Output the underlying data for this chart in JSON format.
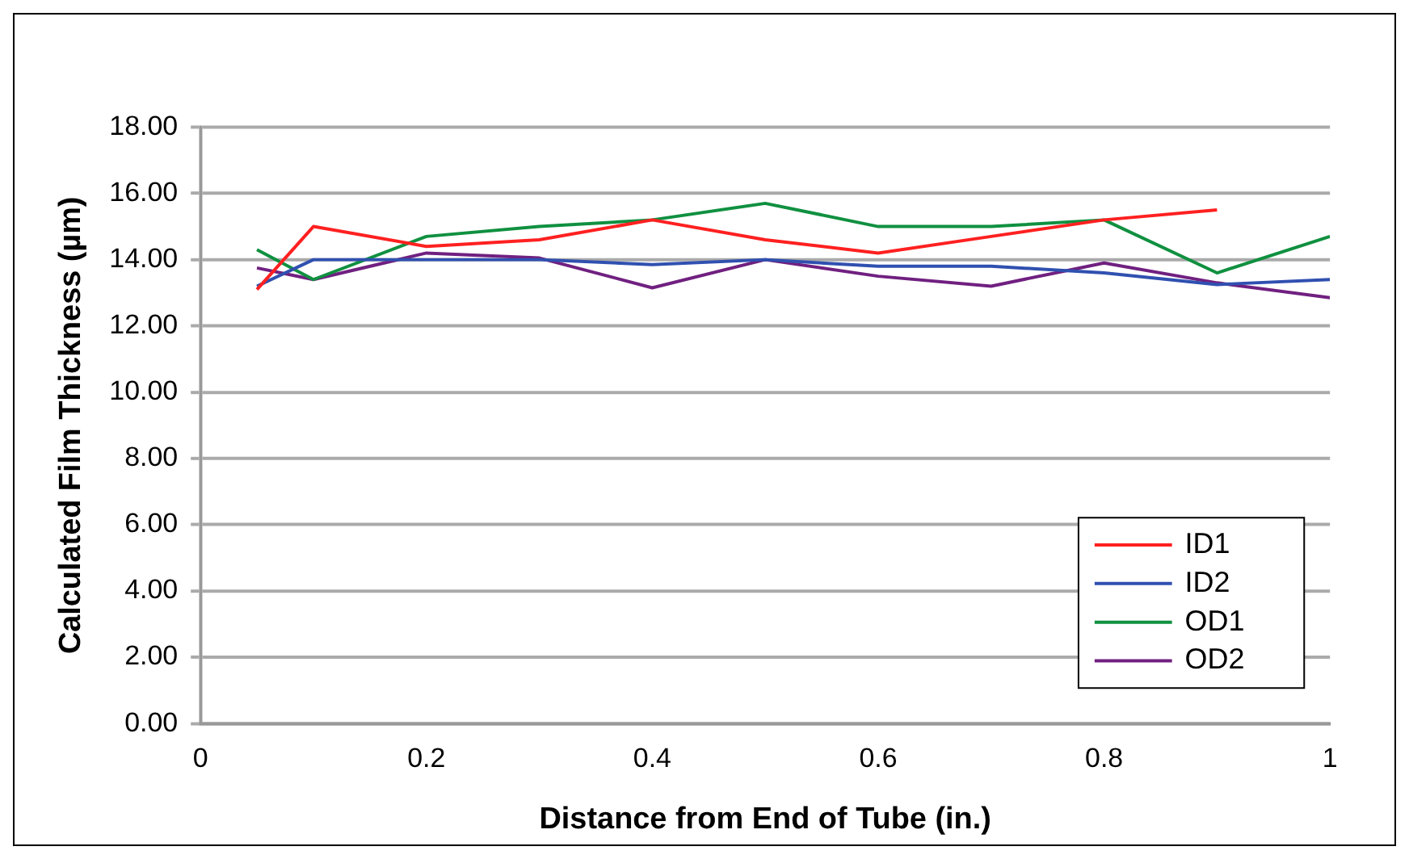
{
  "chart_data": {
    "type": "line",
    "xlabel": "Distance from End of Tube (in.)",
    "ylabel": "Calculated Film Thickness (µm)",
    "x": [
      0.05,
      0.1,
      0.2,
      0.3,
      0.4,
      0.5,
      0.6,
      0.7,
      0.8,
      0.9,
      1.0
    ],
    "series": [
      {
        "name": "ID1",
        "color": "#ff2020",
        "values": [
          13.1,
          15.0,
          14.4,
          14.6,
          15.2,
          14.6,
          14.2,
          14.7,
          15.2,
          15.5,
          null
        ]
      },
      {
        "name": "ID2",
        "color": "#3050b0",
        "values": [
          13.2,
          14.0,
          14.0,
          14.0,
          13.85,
          14.0,
          13.8,
          13.8,
          13.6,
          13.25,
          13.4
        ]
      },
      {
        "name": "OD1",
        "color": "#109040",
        "values": [
          14.3,
          13.4,
          14.7,
          15.0,
          15.2,
          15.7,
          15.0,
          15.0,
          15.2,
          13.6,
          14.7
        ]
      },
      {
        "name": "OD2",
        "color": "#702080",
        "values": [
          13.75,
          13.4,
          14.2,
          14.05,
          13.15,
          14.0,
          13.5,
          13.2,
          13.9,
          13.3,
          12.85
        ]
      }
    ],
    "xlim": [
      0,
      1
    ],
    "xticks": [
      0,
      0.2,
      0.4,
      0.6,
      0.8,
      1
    ],
    "ylim": [
      0,
      18
    ],
    "yticks": [
      {
        "value": 0,
        "label": "0.00"
      },
      {
        "value": 2,
        "label": "2.00"
      },
      {
        "value": 4,
        "label": "4.00"
      },
      {
        "value": 6,
        "label": "6.00"
      },
      {
        "value": 8,
        "label": "8.00"
      },
      {
        "value": 10,
        "label": "10.00"
      },
      {
        "value": 12,
        "label": "12.00"
      },
      {
        "value": 14,
        "label": "14.00"
      },
      {
        "value": 16,
        "label": "16.00"
      },
      {
        "value": 18,
        "label": "18.00"
      }
    ],
    "grid": "y",
    "legend": "bottom right",
    "marker": "none",
    "line_style": "solid"
  }
}
